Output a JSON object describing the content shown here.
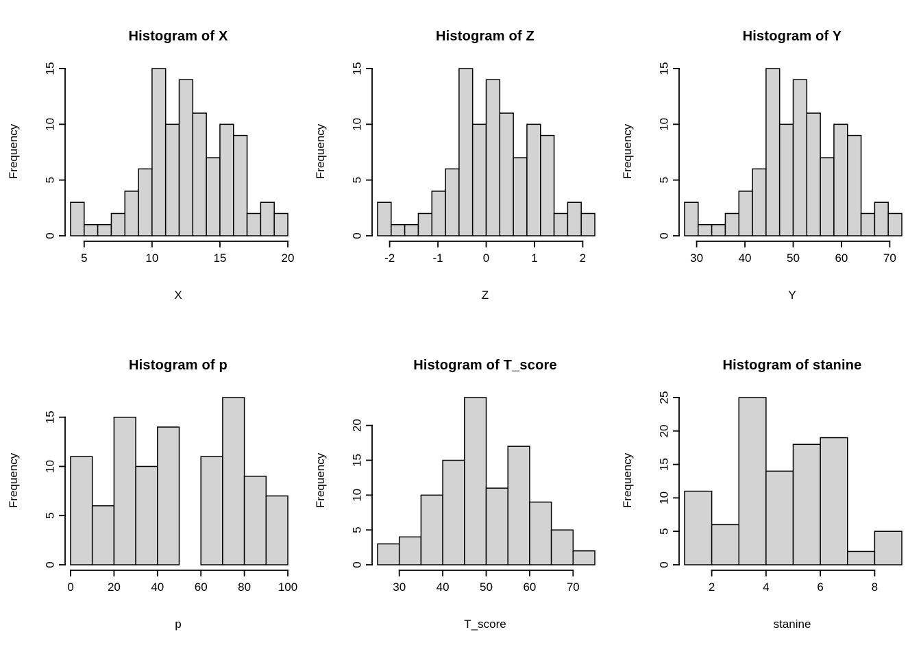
{
  "page": {
    "background": "#ffffff",
    "bar_fill": "#d3d3d3",
    "bar_stroke": "#000000",
    "text_color": "#000000"
  },
  "chart_data": [
    {
      "type": "bar",
      "subtype": "histogram",
      "title": "Histogram of X",
      "xlabel": "X",
      "ylabel": "Frequency",
      "bin_start": 4,
      "bin_width": 1,
      "counts": [
        3,
        1,
        1,
        2,
        4,
        6,
        15,
        10,
        14,
        11,
        7,
        10,
        9,
        2,
        3,
        2
      ],
      "x_ticks": [
        5,
        10,
        15,
        20
      ],
      "y_ticks": [
        0,
        5,
        10,
        15
      ],
      "ylim": [
        0,
        15
      ]
    },
    {
      "type": "bar",
      "subtype": "histogram",
      "title": "Histogram of Z",
      "xlabel": "Z",
      "ylabel": "Frequency",
      "bin_start": -2.25,
      "bin_width": 0.28125,
      "counts": [
        3,
        1,
        1,
        2,
        4,
        6,
        15,
        10,
        14,
        11,
        7,
        10,
        9,
        2,
        3,
        2
      ],
      "x_ticks": [
        -2,
        -1,
        0,
        1,
        2
      ],
      "y_ticks": [
        0,
        5,
        10,
        15
      ],
      "ylim": [
        0,
        15
      ]
    },
    {
      "type": "bar",
      "subtype": "histogram",
      "title": "Histogram of Y",
      "xlabel": "Y",
      "ylabel": "Frequency",
      "bin_start": 27.5,
      "bin_width": 2.8125,
      "counts": [
        3,
        1,
        1,
        2,
        4,
        6,
        15,
        10,
        14,
        11,
        7,
        10,
        9,
        2,
        3,
        2
      ],
      "x_ticks": [
        30,
        40,
        50,
        60,
        70
      ],
      "y_ticks": [
        0,
        5,
        10,
        15
      ],
      "ylim": [
        0,
        15
      ]
    },
    {
      "type": "bar",
      "subtype": "histogram",
      "title": "Histogram of p",
      "xlabel": "p",
      "ylabel": "Frequency",
      "bin_start": 0,
      "bin_width": 10,
      "counts": [
        11,
        6,
        15,
        10,
        14,
        0,
        11,
        17,
        9,
        7
      ],
      "x_ticks": [
        0,
        20,
        40,
        60,
        80,
        100
      ],
      "y_ticks": [
        0,
        5,
        10,
        15
      ],
      "ylim": [
        0,
        17
      ]
    },
    {
      "type": "bar",
      "subtype": "histogram",
      "title": "Histogram of T_score",
      "xlabel": "T_score",
      "ylabel": "Frequency",
      "bin_start": 25,
      "bin_width": 5,
      "counts": [
        3,
        4,
        10,
        15,
        24,
        11,
        17,
        9,
        5,
        2
      ],
      "x_ticks": [
        30,
        40,
        50,
        60,
        70
      ],
      "y_ticks": [
        0,
        5,
        10,
        15,
        20
      ],
      "ylim": [
        0,
        24
      ]
    },
    {
      "type": "bar",
      "subtype": "histogram",
      "title": "Histogram of stanine",
      "xlabel": "stanine",
      "ylabel": "Frequency",
      "bin_start": 1,
      "bin_width": 1,
      "counts": [
        11,
        6,
        25,
        14,
        18,
        19,
        2,
        5
      ],
      "x_ticks": [
        2,
        4,
        6,
        8
      ],
      "y_ticks": [
        0,
        5,
        10,
        15,
        20,
        25
      ],
      "ylim": [
        0,
        25
      ]
    }
  ]
}
